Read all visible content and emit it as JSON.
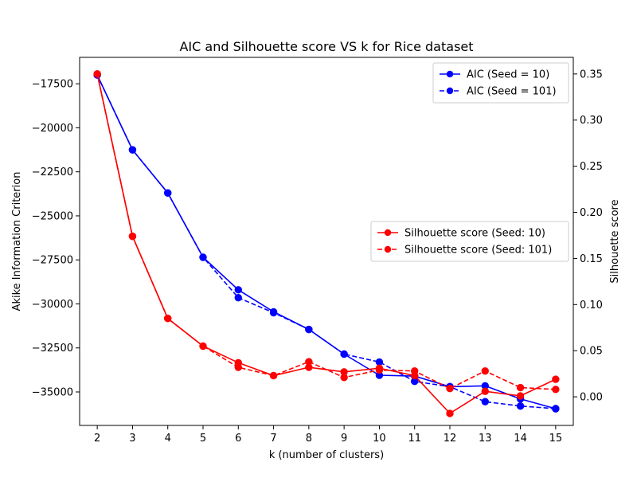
{
  "chart_data": {
    "type": "line",
    "title": "AIC and Silhouette score VS k for Rice dataset",
    "xlabel": "k (number of clusters)",
    "ylabel_left": "Akike Information Criterion",
    "ylabel_right": "Silhouette score",
    "x": [
      2,
      3,
      4,
      5,
      6,
      7,
      8,
      9,
      10,
      11,
      12,
      13,
      14,
      15
    ],
    "xlim": [
      1.5,
      15.5
    ],
    "ylim_left": [
      -36900,
      -16000
    ],
    "ylim_right": [
      -0.031,
      0.368
    ],
    "yticks_left": [
      -17500,
      -20000,
      -22500,
      -25000,
      -27500,
      -30000,
      -32500,
      -35000
    ],
    "yticks_left_labels": [
      "−17500",
      "−20000",
      "−22500",
      "−25000",
      "−27500",
      "−30000",
      "−32500",
      "−35000"
    ],
    "yticks_right": [
      0.35,
      0.3,
      0.25,
      0.2,
      0.15,
      0.1,
      0.05,
      0.0
    ],
    "yticks_right_labels": [
      "0.35",
      "0.30",
      "0.25",
      "0.20",
      "0.15",
      "0.10",
      "0.05",
      "0.00"
    ],
    "grid": false,
    "series_left": [
      {
        "name": "AIC (Seed = 10)",
        "color": "#0000ff",
        "dash": "solid",
        "values": [
          -17000,
          -21250,
          -23700,
          -27350,
          -29200,
          -30450,
          -31450,
          -32850,
          -34050,
          -34100,
          -34700,
          -34650,
          -35400,
          -35950
        ]
      },
      {
        "name": "AIC (Seed = 101)",
        "color": "#0000ff",
        "dash": "dashed",
        "values": [
          -17000,
          -21250,
          -23700,
          -27350,
          -29650,
          -30500,
          -31450,
          -32850,
          -33300,
          -34400,
          -34700,
          -35550,
          -35800,
          -35950
        ]
      }
    ],
    "series_right": [
      {
        "name": "Silhouette score (Seed: 10)",
        "color": "#ff0000",
        "dash": "solid",
        "values": [
          0.35,
          0.174,
          0.085,
          0.055,
          0.037,
          0.023,
          0.032,
          0.027,
          0.031,
          0.023,
          -0.018,
          0.006,
          0.001,
          0.019
        ]
      },
      {
        "name": "Silhouette score (Seed: 101)",
        "color": "#ff0000",
        "dash": "dashed",
        "values": [
          0.35,
          0.174,
          0.085,
          0.055,
          0.032,
          0.023,
          0.038,
          0.021,
          0.029,
          0.028,
          0.009,
          0.028,
          0.01,
          0.008
        ]
      }
    ],
    "legend_left_placement": "upper-right",
    "legend_right_placement": "center-right"
  }
}
